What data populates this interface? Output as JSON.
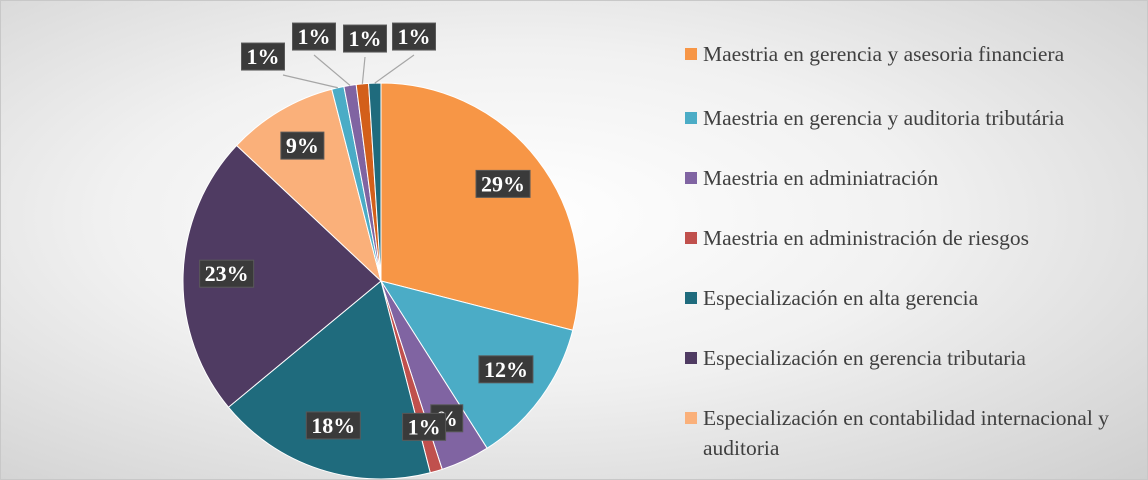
{
  "chart_data": {
    "type": "pie",
    "categories": [
      "Maestria en gerencia y asesoria financiera",
      "Maestria en gerencia y auditoria tributária",
      "Maestria en adminiatración",
      "Maestria en administración de riesgos",
      "Especialización en alta gerencia",
      "Especialización en gerencia tributaria",
      "Especialización en contabilidad internacional y auditoria",
      null,
      null,
      null,
      null
    ],
    "values": [
      29,
      12,
      4,
      1,
      18,
      23,
      9,
      1,
      1,
      1,
      1
    ],
    "value_labels": [
      "29%",
      "12%",
      "%",
      "1%",
      "18%",
      "23%",
      "9%",
      "1%",
      "1%",
      "1%",
      "1%"
    ],
    "colors": [
      "#f79646",
      "#4bacc6",
      "#8064a2",
      "#c0504d",
      "#1f6b7d",
      "#4f3b62",
      "#fab07a",
      "#4bacc6",
      "#8064a2",
      "#d35f1a",
      "#1f6b7d"
    ],
    "legend": "right"
  }
}
